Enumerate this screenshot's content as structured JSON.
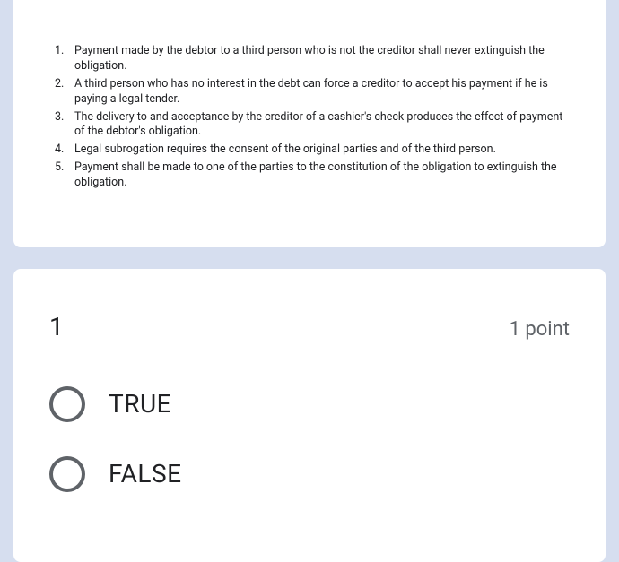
{
  "instructions": {
    "items": [
      "Payment made by the debtor to a third person who is not the creditor shall never extinguish the obligation.",
      "A third person who has no interest in the debt can force a creditor to accept his payment if he is paying a legal tender.",
      "The delivery to and acceptance by the creditor of a cashier's check produces the effect of payment of the debtor's obligation.",
      "Legal subrogation requires the consent of the original parties and of the third person.",
      "Payment shall be made to one of the parties to the constitution of the obligation to extinguish the obligation."
    ]
  },
  "question": {
    "number": "1",
    "points": "1 point",
    "options": [
      {
        "label": "TRUE"
      },
      {
        "label": "FALSE"
      }
    ]
  },
  "colors": {
    "page_bg": "#d6deef",
    "card_bg": "#ffffff",
    "text_primary": "#202124",
    "text_secondary": "#5f6368",
    "radio_border": "#5f6368"
  }
}
